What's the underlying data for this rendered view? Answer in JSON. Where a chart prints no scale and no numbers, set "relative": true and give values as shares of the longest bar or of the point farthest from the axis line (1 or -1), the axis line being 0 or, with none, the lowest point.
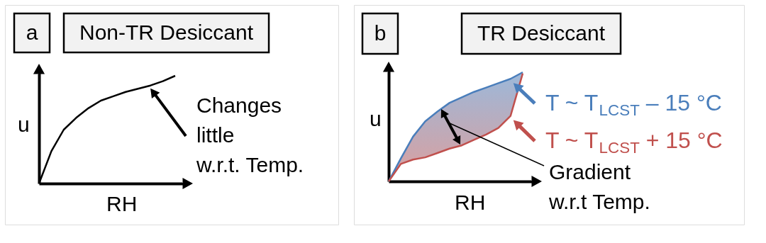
{
  "chart_data": [
    {
      "type": "line",
      "title": "Non-TR Desiccant",
      "xlabel": "RH",
      "ylabel": "u",
      "relative": true,
      "categories": [
        null,
        null,
        null,
        null,
        null,
        null,
        null,
        null,
        null,
        null,
        null,
        null
      ],
      "series": [
        {
          "color": "#000000",
          "values": [
            0,
            0.3,
            0.5,
            0.61,
            0.7,
            0.77,
            0.81,
            0.85,
            0.88,
            0.91,
            0.95,
            1
          ]
        }
      ],
      "annotations": [
        "a",
        "Changes\nlittle\nw.r.t. Temp."
      ]
    },
    {
      "type": "line",
      "title": "TR Desiccant",
      "xlabel": "RH",
      "ylabel": "u",
      "relative": true,
      "categories": [
        null,
        null,
        null,
        null,
        null,
        null,
        null,
        null,
        null,
        null,
        null,
        null
      ],
      "series": [
        {
          "name": "T ~ T$_{LCST}$ – 15 °C",
          "color": "#4a7ebb",
          "values": [
            0,
            0.21,
            0.41,
            0.55,
            0.64,
            0.72,
            0.77,
            0.82,
            0.86,
            0.9,
            0.94,
            1
          ],
          "lower": [
            0,
            0.16,
            0.2,
            0.22,
            0.26,
            0.3,
            0.33,
            0.38,
            0.43,
            0.49,
            0.6,
            0.99
          ],
          "upper": [
            0,
            0.21,
            0.41,
            0.55,
            0.64,
            0.72,
            0.77,
            0.82,
            0.86,
            0.9,
            0.94,
            1
          ]
        },
        {
          "name": "T ~ T$_{LCST}$ + 15 °C",
          "color": "#c0504d",
          "values": [
            0,
            0.16,
            0.2,
            0.22,
            0.26,
            0.3,
            0.33,
            0.38,
            0.43,
            0.49,
            0.6,
            0.99
          ]
        }
      ],
      "legend": "right",
      "annotations": [
        "b",
        "Gradient\nw.r.t Temp."
      ]
    }
  ]
}
